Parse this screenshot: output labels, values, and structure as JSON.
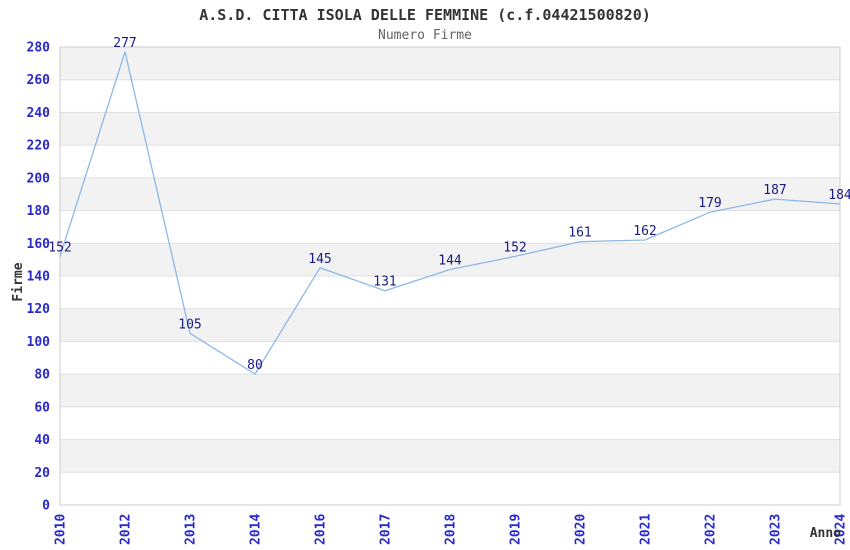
{
  "chart_data": {
    "type": "line",
    "title": "A.S.D. CITTA ISOLA DELLE FEMMINE (c.f.04421500820)",
    "subtitle": "Numero Firme",
    "xlabel": "Anno",
    "ylabel": "Firme",
    "categories": [
      "2010",
      "2012",
      "2013",
      "2014",
      "2016",
      "2017",
      "2018",
      "2019",
      "2020",
      "2021",
      "2022",
      "2023",
      "2024"
    ],
    "values": [
      152,
      277,
      105,
      80,
      145,
      131,
      144,
      152,
      161,
      162,
      179,
      187,
      184
    ],
    "ylim": [
      0,
      280
    ],
    "ytick_step": 20,
    "yticks": [
      0,
      20,
      40,
      60,
      80,
      100,
      120,
      140,
      160,
      180,
      200,
      220,
      240,
      260,
      280
    ],
    "grid": true,
    "legend": "none",
    "point_markers": false,
    "colors": {
      "line": "#8cb8e9",
      "data_label": "#1a1a85",
      "tick_label": "#2929cc",
      "axis_label": "#333333",
      "title": "#333333",
      "subtitle": "#646464",
      "band_gray": "#f2f2f2",
      "band_white": "#ffffff",
      "gridline": "#e0e0e0",
      "plot_border": "#cccccc",
      "background": "#ffffff"
    }
  }
}
